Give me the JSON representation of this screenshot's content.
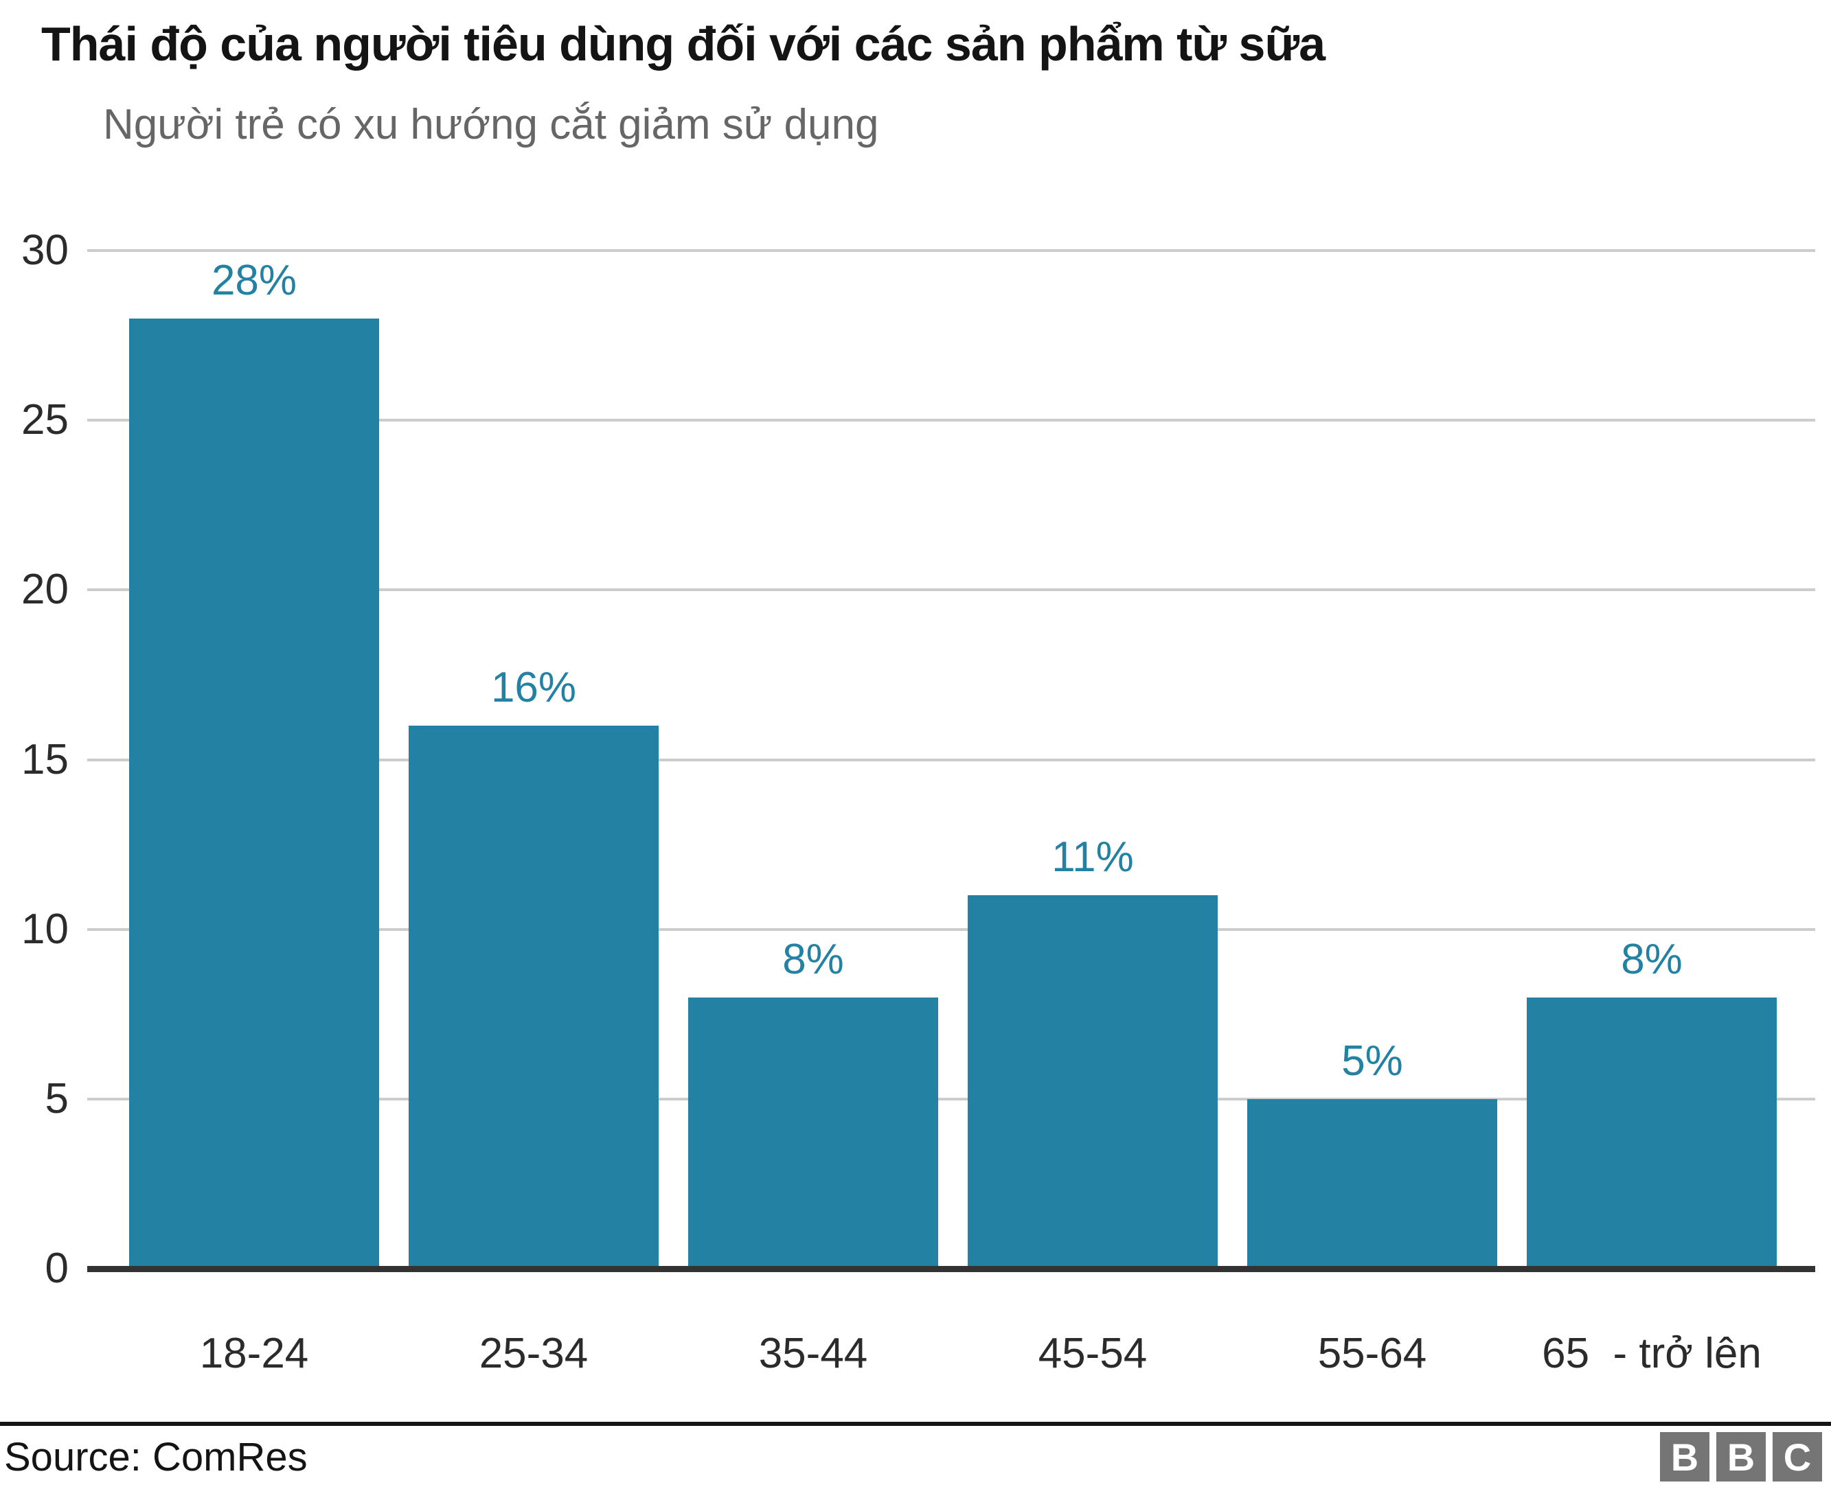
{
  "header": {
    "title": "Thái độ của người tiêu dùng đối với các sản phẩm từ sữa",
    "subtitle": "Người trẻ có xu hướng cắt giảm sử dụng"
  },
  "chart_data": {
    "type": "bar",
    "categories": [
      "18-24",
      "25-34",
      "35-44",
      "45-54",
      "55-64",
      "65  - trở lên"
    ],
    "values": [
      28,
      16,
      8,
      11,
      5,
      8
    ],
    "value_labels": [
      "28%",
      "16%",
      "8%",
      "11%",
      "5%",
      "8%"
    ],
    "yticks": [
      0,
      5,
      10,
      15,
      20,
      25,
      30
    ],
    "ylim": [
      0,
      30
    ],
    "xlabel": "",
    "ylabel": "",
    "grid": true,
    "legend": false,
    "title": "Thái độ của người tiêu dùng đối với các sản phẩm từ sữa",
    "subtitle": "Người trẻ có xu hướng cắt giảm sử dụng",
    "colors": {
      "bar": "#2381a4",
      "value_label": "#2381a4",
      "gridline": "#cccccc",
      "baseline": "#333333",
      "tick_text": "#2b2b2b",
      "title_text": "#141414",
      "subtitle_text": "#666666"
    }
  },
  "footer": {
    "source": "Source: ComRes",
    "logo_letters": [
      "B",
      "B",
      "C"
    ],
    "logo_block_color": "#757575"
  }
}
